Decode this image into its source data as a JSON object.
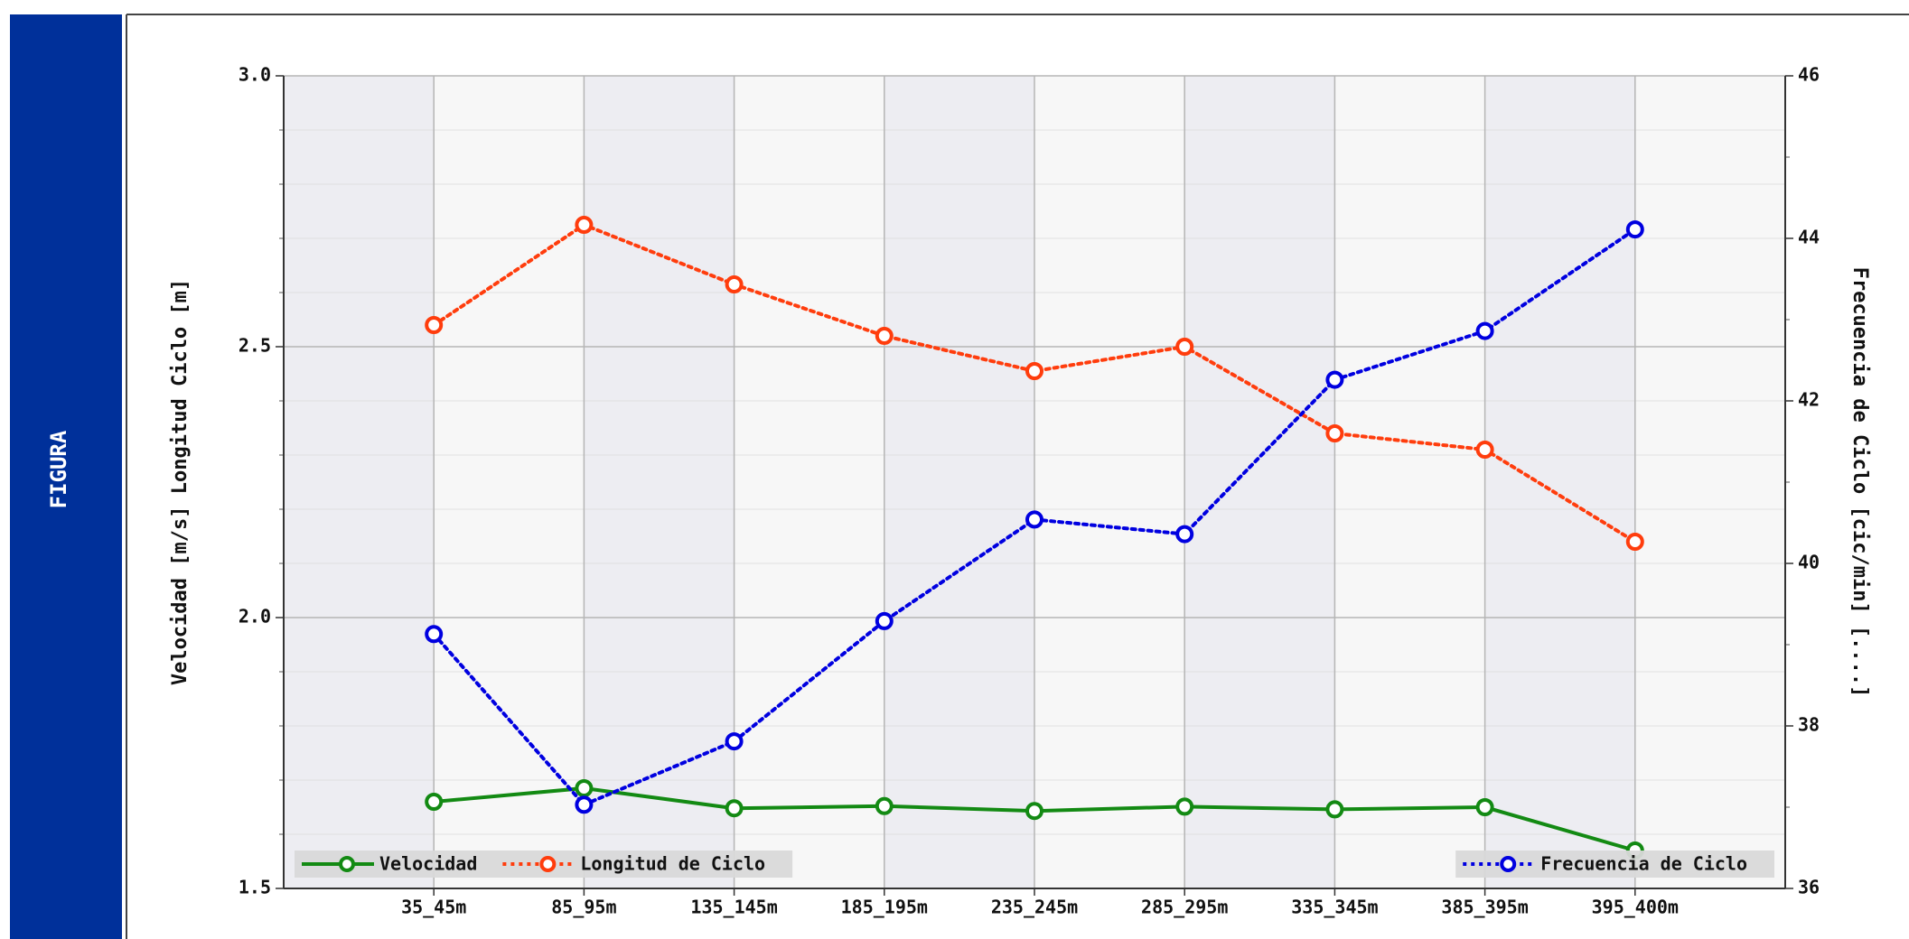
{
  "sidebar": {
    "label": "FIGURA"
  },
  "chart_data": {
    "type": "line",
    "categories": [
      "35_45m",
      "85_95m",
      "135_145m",
      "185_195m",
      "235_245m",
      "285_295m",
      "335_345m",
      "385_395m",
      "395_400m"
    ],
    "ylabel": "Velocidad [m/s]  Longitud Ciclo [m]",
    "y2label": "Frecuencia de Ciclo [cic/min] [....]",
    "ylim": [
      1.5,
      3.0
    ],
    "yticks": [
      {
        "value": 1.5,
        "label": "1.5"
      },
      {
        "value": 2.0,
        "label": "2.0"
      },
      {
        "value": 2.5,
        "label": "2.5"
      },
      {
        "value": 3.0,
        "label": "3.0"
      }
    ],
    "yminorticks": [
      1.6,
      1.7,
      1.8,
      1.9,
      2.1,
      2.2,
      2.3,
      2.4,
      2.6,
      2.7,
      2.8,
      2.9
    ],
    "y2lim": [
      36,
      46
    ],
    "y2ticks": [
      36,
      38,
      40,
      42,
      44,
      46
    ],
    "y2minorticks": [
      37,
      39,
      41,
      43,
      45
    ],
    "grid": true,
    "legend_loc": {
      "y": "lower left",
      "y2": "lower right"
    },
    "series": [
      {
        "name": "Velocidad",
        "color": "#138a13",
        "style": "solid",
        "axis": "y",
        "values": [
          1.66,
          1.685,
          1.648,
          1.652,
          1.643,
          1.651,
          1.646,
          1.65,
          1.57
        ]
      },
      {
        "name": "Longitud de Ciclo",
        "color": "#ff3d0d",
        "style": "dotted",
        "axis": "y",
        "values": [
          2.54,
          2.725,
          2.615,
          2.52,
          2.455,
          2.5,
          2.34,
          2.31,
          2.14
        ]
      },
      {
        "name": "Frecuencia de Ciclo",
        "color": "#0000e0",
        "style": "dotted",
        "axis": "y2",
        "values": [
          39.13,
          37.03,
          37.81,
          39.29,
          40.54,
          40.36,
          42.26,
          42.86,
          44.11
        ]
      }
    ]
  }
}
